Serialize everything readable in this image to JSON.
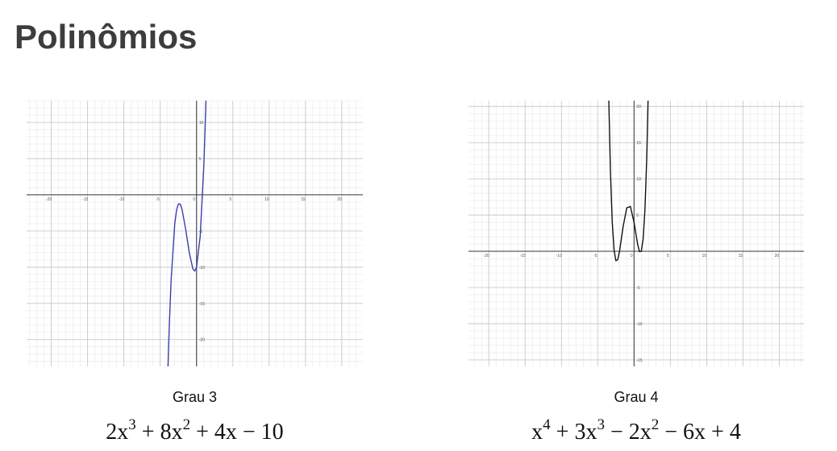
{
  "title": "Polinômios",
  "chart_data": [
    {
      "type": "line",
      "caption": "Grau 3",
      "formula": [
        {
          "base": "2x",
          "exp": "3"
        },
        {
          "base": " + 8x",
          "exp": "2"
        },
        {
          "base": " + 4x − 10"
        }
      ],
      "xlim": [
        -23.4,
        22.9
      ],
      "ylim": [
        -23.7,
        13
      ],
      "xticks": [
        -20,
        -15,
        -10,
        -5,
        0,
        5,
        10,
        15,
        20
      ],
      "yticks": [
        -20,
        -15,
        -10,
        -5,
        5,
        10
      ],
      "grid": true,
      "x": [
        -4,
        -3.75,
        -3.5,
        -3,
        -2.75,
        -2.5,
        -2.25,
        -2,
        -1.5,
        -1,
        -0.5,
        -0.25,
        0,
        0.5,
        1,
        1.25,
        1.4
      ],
      "series": [
        {
          "color": "#3b3fa8",
          "values": [
            -26,
            -17.97,
            -11.75,
            -4,
            -2.09,
            -1.25,
            -1.28,
            -2,
            -4.75,
            -8,
            -10.25,
            -10.53,
            -10,
            -5.75,
            4,
            11.41,
            16.77
          ]
        }
      ]
    },
    {
      "type": "line",
      "caption": "Grau 4",
      "formula": [
        {
          "base": "x",
          "exp": "4"
        },
        {
          "base": " + 3x",
          "exp": "3"
        },
        {
          "base": " − 2x",
          "exp": "2"
        },
        {
          "base": " − 6x + 4"
        }
      ],
      "xlim": [
        -22.8,
        23.4
      ],
      "ylim": [
        -15.9,
        20.8
      ],
      "xticks": [
        -20,
        -15,
        -10,
        -5,
        0,
        5,
        10,
        15,
        20
      ],
      "yticks": [
        -15,
        -10,
        -5,
        5,
        10,
        15,
        20
      ],
      "grid": true,
      "x": [
        -3.5,
        -3.25,
        -3,
        -2.75,
        -2.5,
        -2.25,
        -2,
        -1.5,
        -1,
        -0.5,
        0,
        0.5,
        0.75,
        1,
        1.25,
        1.5,
        1.75,
        2
      ],
      "series": [
        {
          "color": "#111111",
          "values": [
            21.94,
            11.0,
            4,
            0.18,
            -1.31,
            -1.17,
            0,
            3.44,
            6,
            6.19,
            4,
            0.94,
            -0.04,
            0,
            1.68,
            5.69,
            12.83,
            24
          ]
        }
      ]
    }
  ]
}
